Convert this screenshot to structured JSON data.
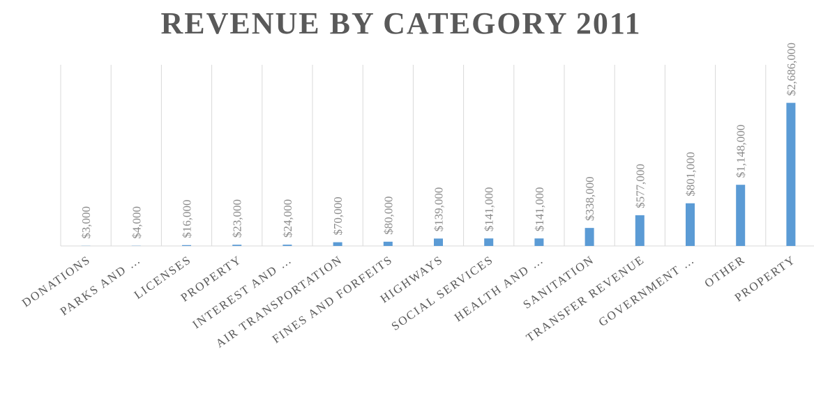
{
  "chart_data": {
    "type": "bar",
    "title": "REVENUE BY CATEGORY 2011",
    "categories": [
      "DONATIONS",
      "PARKS AND …",
      "LICENSES",
      "PROPERTY",
      "INTEREST AND …",
      "AIR TRANSPORTATION",
      "FINES AND FORFEITS",
      "HIGHWAYS",
      "SOCIAL SERVICES",
      "HEALTH AND …",
      "SANITATION",
      "TRANSFER REVENUE",
      "GOVERNMENT …",
      "OTHER",
      "PROPERTY"
    ],
    "values": [
      3000,
      4000,
      16000,
      23000,
      24000,
      70000,
      80000,
      139000,
      141000,
      141000,
      338000,
      577000,
      801000,
      1148000,
      2686000
    ],
    "value_labels": [
      "$3,000",
      "$4,000",
      "$16,000",
      "$23,000",
      "$24,000",
      "$70,000",
      "$80,000",
      "$139,000",
      "$141,000",
      "$141,000",
      "$338,000",
      "$577,000",
      "$801,000",
      "$1,148,000",
      "$2,686,000"
    ],
    "color": "#5b9bd5",
    "ylim": [
      0,
      3400000
    ],
    "grid": true
  }
}
